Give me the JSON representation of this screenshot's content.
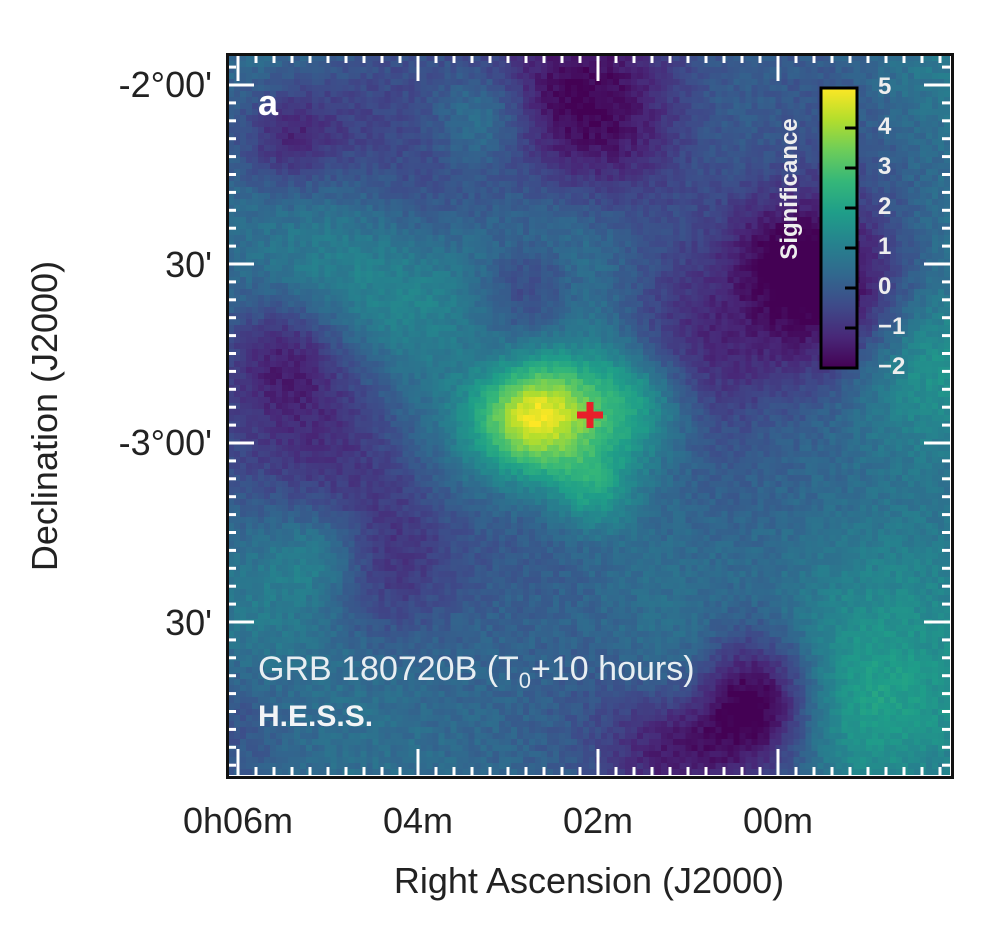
{
  "chart_data": {
    "type": "heatmap",
    "panel_label": "a",
    "xlabel": "Right Ascension (J2000)",
    "ylabel": "Declination (J2000)",
    "x_ticks": [
      "0h06m",
      "04m",
      "02m",
      "00m"
    ],
    "y_ticks": [
      "-2°00'",
      "30'",
      "-3°00'",
      "30'"
    ],
    "colorbar": {
      "label": "Significance",
      "range": [
        -2,
        5
      ],
      "ticks": [
        "5",
        "4",
        "3",
        "2",
        "1",
        "0",
        "−1",
        "−2"
      ],
      "colormap": "viridis"
    },
    "annotation_title": "GRB 180720B (T",
    "annotation_sub": "0",
    "annotation_rest": "+10 hours)",
    "instrument": "H.E.S.S.",
    "source_marker": {
      "symbol": "red cross",
      "ra": "0h02m05s",
      "dec": "-2°55'",
      "color": "#e8202a"
    },
    "peak_significance": 5
  }
}
